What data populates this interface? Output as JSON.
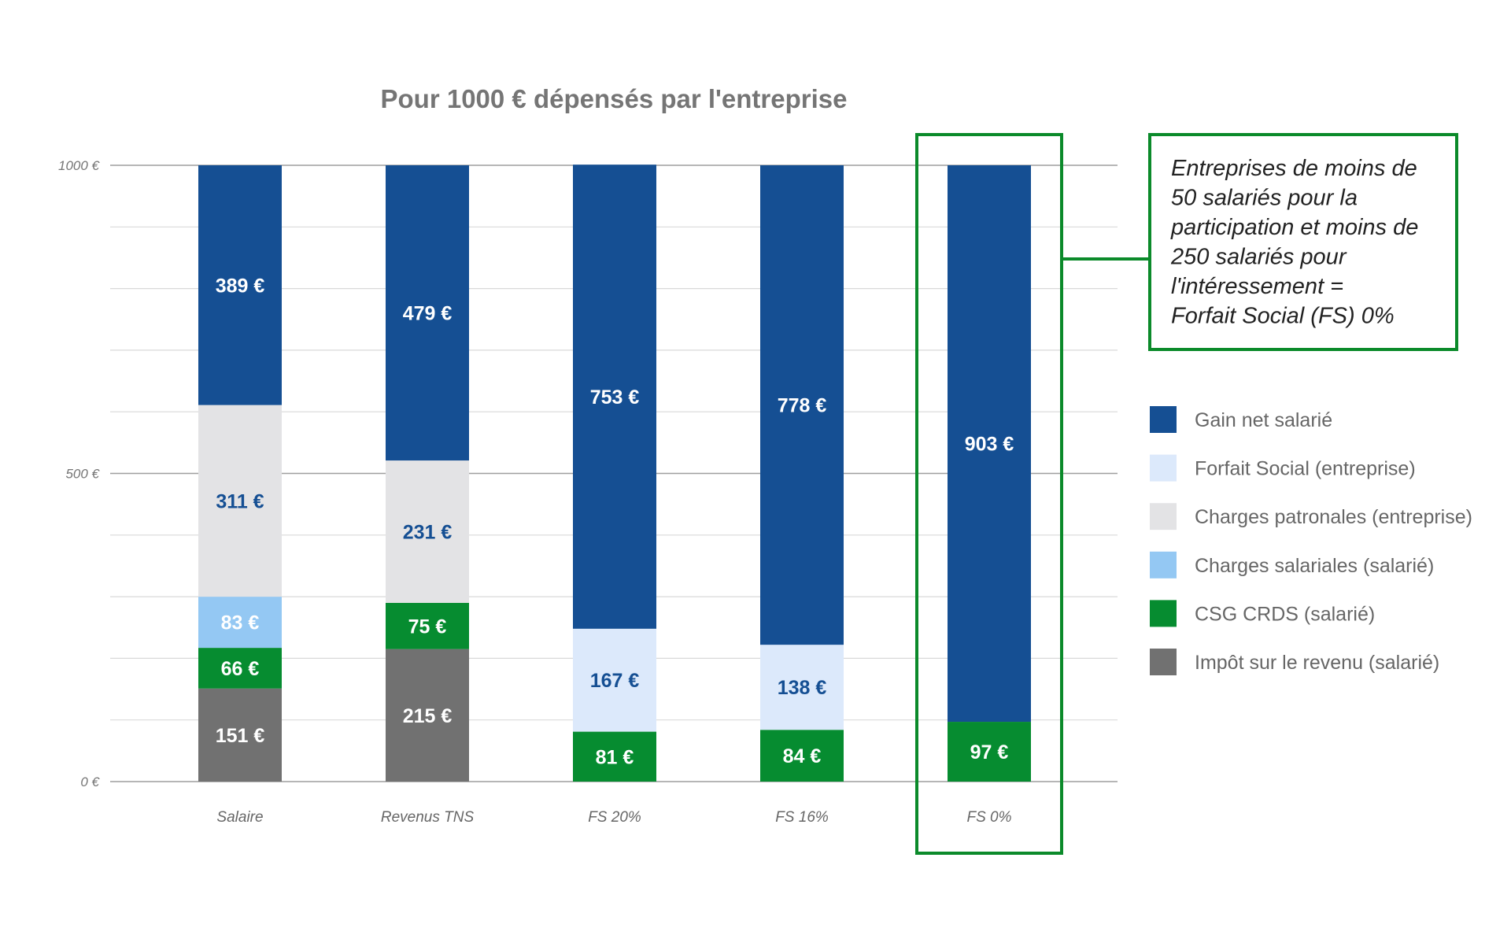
{
  "colors": {
    "gain_net": "#154f93",
    "forfait_social": "#dce9fb",
    "charges_patronales": "#e3e3e5",
    "charges_salariales": "#94c8f3",
    "csg_crds": "#068c30",
    "impot": "#717171",
    "highlight": "#0b8a2a",
    "grid": "#d9d9d9",
    "axis": "#9e9e9e"
  },
  "callout": {
    "lines": [
      "Entreprises de moins de",
      "50 salariés pour la",
      "participation et moins de",
      "250 salariés pour",
      "l'intéressement =",
      "Forfait Social (FS) 0%"
    ]
  },
  "chart_data": {
    "type": "bar",
    "stacked": true,
    "title": "Pour 1000 € dépensés par l'entreprise",
    "xlabel": "",
    "ylabel": "",
    "ylim": [
      0,
      1000
    ],
    "yticks": [
      {
        "value": 0,
        "label": "0 €"
      },
      {
        "value": 500,
        "label": "500 €"
      },
      {
        "value": 1000,
        "label": "1000 €"
      }
    ],
    "gridlines": true,
    "legend_position": "right",
    "highlighted_category": "FS 0%",
    "categories": [
      "Salaire",
      "Revenus TNS",
      "FS 20%",
      "FS 16%",
      "FS 0%"
    ],
    "series": [
      {
        "name": "Impôt sur le revenu (salarié)",
        "color_key": "impot",
        "label_color": "#ffffff",
        "values": [
          151,
          215,
          0,
          0,
          0
        ],
        "labels": [
          "151 €",
          "215 €",
          "",
          "",
          ""
        ]
      },
      {
        "name": "CSG CRDS (salarié)",
        "color_key": "csg_crds",
        "label_color": "#ffffff",
        "values": [
          66,
          75,
          81,
          84,
          97
        ],
        "labels": [
          "66 €",
          "75 €",
          "81 €",
          "84 €",
          "97 €"
        ]
      },
      {
        "name": "Charges salariales (salarié)",
        "color_key": "charges_salariales",
        "label_color": "#ffffff",
        "values": [
          83,
          0,
          0,
          0,
          0
        ],
        "labels": [
          "83 €",
          "",
          "",
          "",
          ""
        ]
      },
      {
        "name": "Charges patronales (entreprise)",
        "color_key": "charges_patronales",
        "label_color": "#154f93",
        "values": [
          311,
          231,
          0,
          0,
          0
        ],
        "labels": [
          "311 €",
          "231 €",
          "",
          "",
          ""
        ]
      },
      {
        "name": "Forfait Social (entreprise)",
        "color_key": "forfait_social",
        "label_color": "#154f93",
        "values": [
          0,
          0,
          167,
          138,
          0
        ],
        "labels": [
          "",
          "",
          "167 €",
          "138 €",
          ""
        ]
      },
      {
        "name": "Gain net salarié",
        "color_key": "gain_net",
        "label_color": "#ffffff",
        "values": [
          389,
          479,
          753,
          778,
          903
        ],
        "labels": [
          "389 €",
          "479 €",
          "753 €",
          "778 €",
          "903 €"
        ]
      }
    ],
    "legend": [
      {
        "name": "Gain net salarié",
        "color_key": "gain_net"
      },
      {
        "name": "Forfait Social (entreprise)",
        "color_key": "forfait_social"
      },
      {
        "name": "Charges patronales (entreprise)",
        "color_key": "charges_patronales"
      },
      {
        "name": "Charges salariales (salarié)",
        "color_key": "charges_salariales"
      },
      {
        "name": "CSG CRDS (salarié)",
        "color_key": "csg_crds"
      },
      {
        "name": "Impôt sur le revenu (salarié)",
        "color_key": "impot"
      }
    ]
  }
}
